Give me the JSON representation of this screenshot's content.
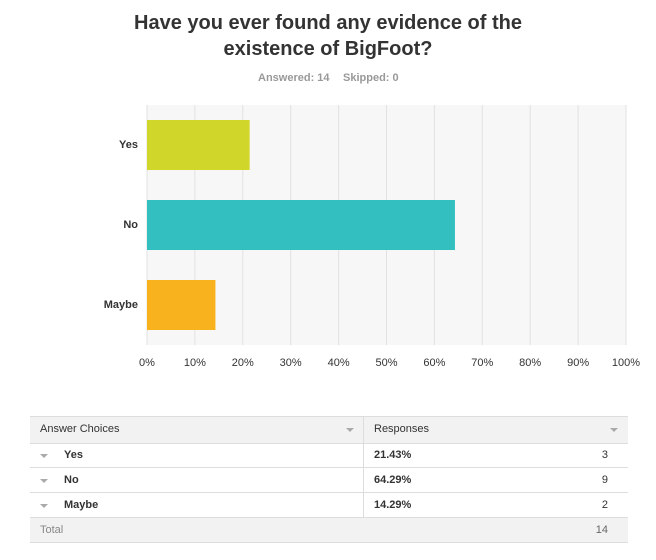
{
  "chart_data": {
    "type": "hbar",
    "title": "Have you ever found any evidence of the existence of BigFoot?",
    "annotations": [
      "Answered: 14",
      "Skipped: 0"
    ],
    "categories": [
      "Yes",
      "No",
      "Maybe"
    ],
    "values": [
      21.43,
      64.29,
      14.29
    ],
    "colors": [
      "#d0d72a",
      "#33bfbf",
      "#f7b21e"
    ],
    "xlim": [
      0,
      100
    ],
    "xticks": [
      {
        "value": 0,
        "label": "0%"
      },
      {
        "value": 10,
        "label": "10%"
      },
      {
        "value": 20,
        "label": "20%"
      },
      {
        "value": 30,
        "label": "30%"
      },
      {
        "value": 40,
        "label": "40%"
      },
      {
        "value": 50,
        "label": "50%"
      },
      {
        "value": 60,
        "label": "60%"
      },
      {
        "value": 70,
        "label": "70%"
      },
      {
        "value": 80,
        "label": "80%"
      },
      {
        "value": 90,
        "label": "90%"
      },
      {
        "value": 100,
        "label": "100%"
      }
    ],
    "grid": true
  },
  "table": {
    "columns": [
      "Answer Choices",
      "Responses"
    ],
    "rows": [
      [
        "Yes",
        "21.43%",
        3
      ],
      [
        "No",
        "64.29%",
        9
      ],
      [
        "Maybe",
        "14.29%",
        2
      ]
    ],
    "total_label": "Total",
    "total": 14
  }
}
